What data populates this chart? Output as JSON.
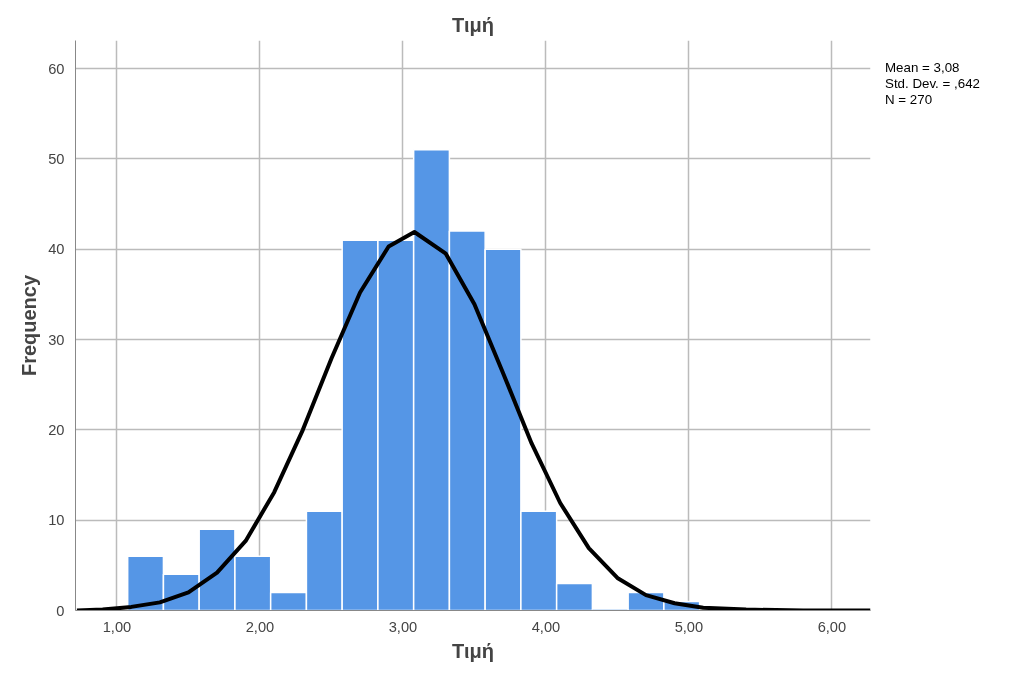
{
  "chart_data": {
    "type": "histogram",
    "title": "Τιμή",
    "xlabel": "Τιμή",
    "ylabel": "Frequency",
    "annotations": [
      "Mean = 3,08",
      "Std. Dev. = ,642",
      "N = 270"
    ],
    "bins": [
      1.075,
      1.325,
      1.575,
      1.825,
      2.075,
      2.325,
      2.575,
      2.825,
      3.075,
      3.325,
      3.575,
      3.825,
      4.075,
      4.325,
      4.575,
      4.825,
      5.075
    ],
    "values": [
      6,
      4,
      9,
      6,
      2,
      11,
      41,
      41,
      51,
      42,
      40,
      11,
      3,
      0,
      2,
      1
    ],
    "color": "#5596e6",
    "series": [
      {
        "type": "line",
        "color": "#000000",
        "x": [
          0.72,
          0.9,
          1.1,
          1.3,
          1.5,
          1.7,
          1.9,
          2.1,
          2.3,
          2.5,
          2.7,
          2.9,
          3.08,
          3.3,
          3.5,
          3.7,
          3.9,
          4.1,
          4.3,
          4.5,
          4.7,
          4.9,
          5.1,
          5.4,
          5.8,
          6.27
        ],
        "values": [
          0.0,
          0.1,
          0.4,
          0.9,
          2.0,
          4.2,
          7.7,
          13.1,
          20.0,
          27.9,
          35.2,
          40.3,
          41.9,
          39.5,
          33.9,
          26.3,
          18.5,
          11.9,
          6.9,
          3.6,
          1.7,
          0.8,
          0.3,
          0.1,
          0.0,
          0.0
        ]
      }
    ],
    "xlim": [
      0.71,
      6.27
    ],
    "ylim": [
      0,
      63.1
    ],
    "xticks": [
      {
        "value": 1,
        "label": "1,00"
      },
      {
        "value": 2,
        "label": "2,00"
      },
      {
        "value": 3,
        "label": "3,00"
      },
      {
        "value": 4,
        "label": "4,00"
      },
      {
        "value": 5,
        "label": "5,00"
      },
      {
        "value": 6,
        "label": "6,00"
      }
    ],
    "yticks": [
      0,
      10,
      20,
      30,
      40,
      50,
      60
    ],
    "grid": true
  }
}
